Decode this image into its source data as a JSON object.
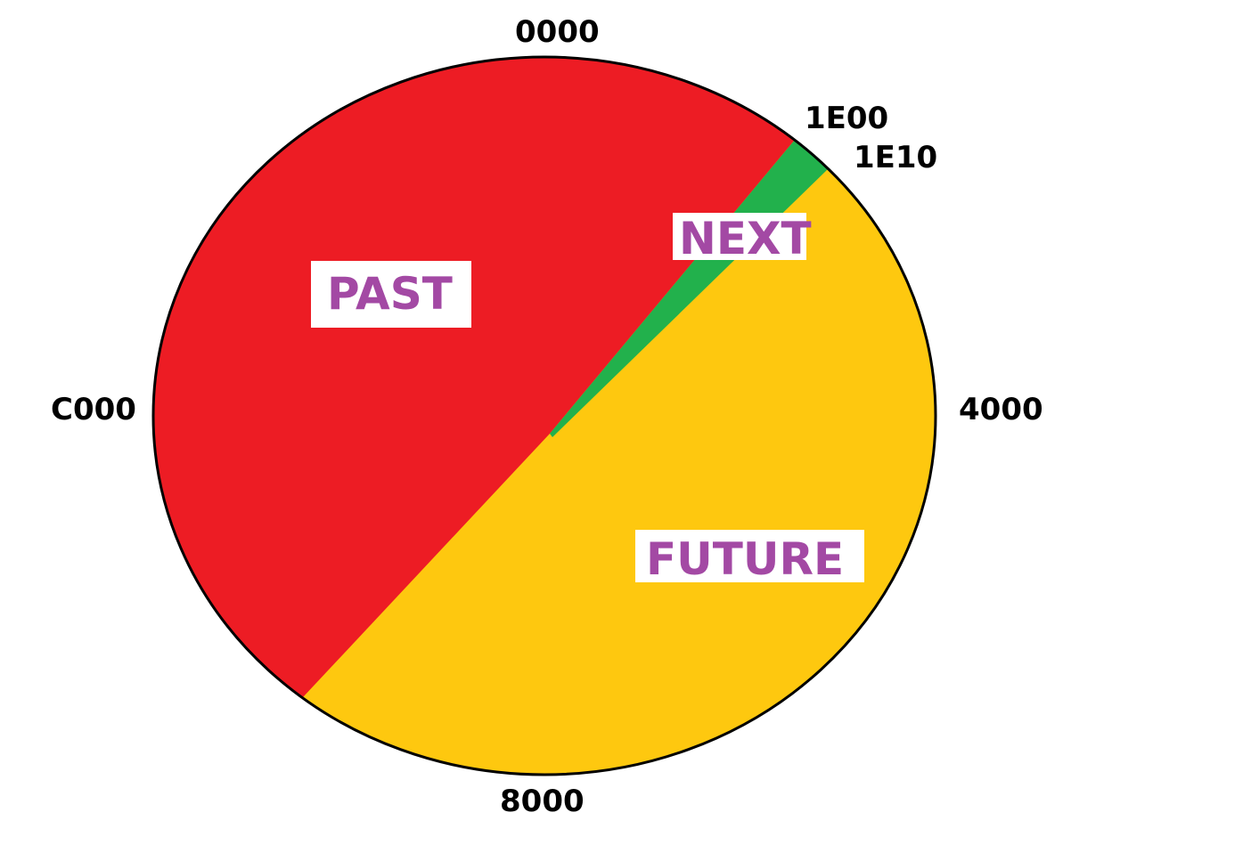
{
  "diagram": {
    "colors": {
      "past": "#ed1c24",
      "next": "#22b14c",
      "future": "#fec80f",
      "label_text": "#a349a4",
      "outline": "#000000"
    },
    "addresses": {
      "top": "0000",
      "next_start": "1E00",
      "next_end": "1E10",
      "right": "4000",
      "bottom": "8000",
      "left": "C000"
    },
    "regions": {
      "past": "PAST",
      "next": "NEXT",
      "future": "FUTURE"
    }
  }
}
